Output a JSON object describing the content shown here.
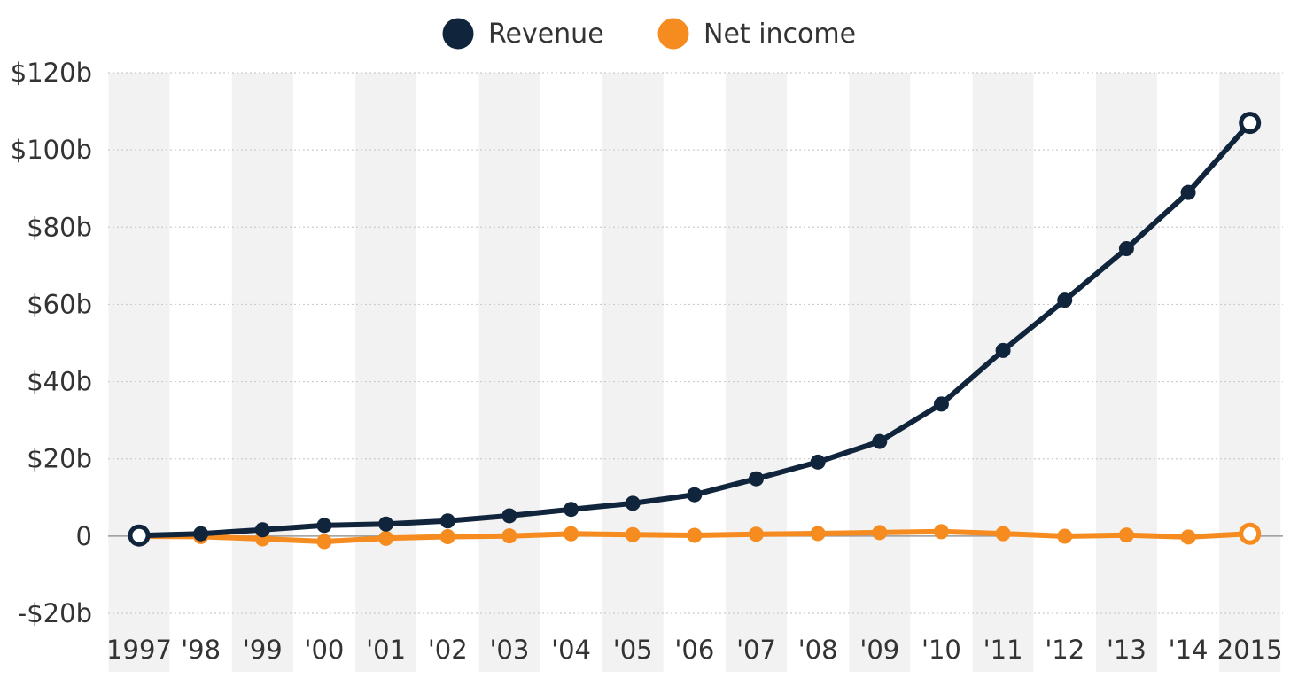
{
  "chart_data": {
    "type": "line",
    "categories": [
      "1997",
      "'98",
      "'99",
      "'00",
      "'01",
      "'02",
      "'03",
      "'04",
      "'05",
      "'06",
      "'07",
      "'08",
      "'09",
      "'10",
      "'11",
      "'12",
      "'13",
      "'14",
      "2015"
    ],
    "series": [
      {
        "name": "Revenue",
        "color": "#10243c",
        "values": [
          0.15,
          0.61,
          1.64,
          2.76,
          3.12,
          3.93,
          5.26,
          6.92,
          8.49,
          10.71,
          14.84,
          19.17,
          24.51,
          34.2,
          48.08,
          61.09,
          74.45,
          88.99,
          107.01
        ]
      },
      {
        "name": "Net income",
        "color": "#f68b1f",
        "values": [
          -0.03,
          -0.12,
          -0.72,
          -1.41,
          -0.57,
          -0.15,
          0.04,
          0.59,
          0.36,
          0.19,
          0.48,
          0.65,
          0.9,
          1.15,
          0.63,
          -0.04,
          0.27,
          -0.24,
          0.6
        ]
      }
    ],
    "ylim": [
      -20,
      120
    ],
    "yticks": [
      {
        "value": 120,
        "label": "$120b"
      },
      {
        "value": 100,
        "label": "$100b"
      },
      {
        "value": 80,
        "label": "$80b"
      },
      {
        "value": 60,
        "label": "$60b"
      },
      {
        "value": 40,
        "label": "$40b"
      },
      {
        "value": 20,
        "label": "$20b"
      },
      {
        "value": 0,
        "label": "0"
      },
      {
        "value": -20,
        "label": "-$20b"
      }
    ],
    "grid": true,
    "legend_position": "top-center",
    "band_color": "#f2f2f2",
    "grid_color": "#cccccc",
    "zero_line_color": "#999999"
  }
}
